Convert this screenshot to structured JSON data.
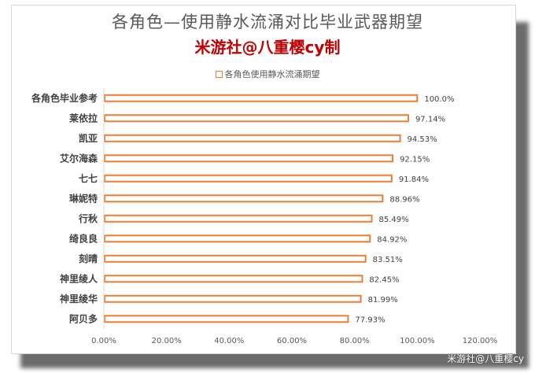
{
  "title": "各角色—使用静水流涌对比毕业武器期望",
  "subtitle": "米游社@八重樱cy制",
  "watermark": "米游社@八重樱cy",
  "colors": {
    "bar_stroke": "#ed7d31",
    "bar_fill": "#ffffff",
    "axis_text": "#595959",
    "label_text": "#404040",
    "subtitle": "#c00000"
  },
  "chart_data": {
    "type": "bar",
    "orientation": "horizontal",
    "categories": [
      "各角色毕业参考",
      "莱依拉",
      "凯亚",
      "艾尔海森",
      "七七",
      "琳妮特",
      "行秋",
      "绮良良",
      "刻晴",
      "神里绫人",
      "神里绫华",
      "阿贝多"
    ],
    "series": [
      {
        "name": "各角色使用静水流涌期望",
        "values": [
          100.0,
          97.14,
          94.53,
          92.15,
          91.84,
          88.96,
          85.49,
          84.92,
          83.51,
          82.45,
          81.99,
          77.93
        ],
        "labels": [
          "100.0%",
          "97.14%",
          "94.53%",
          "92.15%",
          "91.84%",
          "88.96%",
          "85.49%",
          "84.92%",
          "83.51%",
          "82.45%",
          "81.99%",
          "77.93%"
        ]
      }
    ],
    "xlim": [
      0,
      120
    ],
    "xticks": [
      "0.00%",
      "20.00%",
      "40.00%",
      "60.00%",
      "80.00%",
      "100.00%",
      "120.00%"
    ],
    "grid": false,
    "legend_position": "top"
  }
}
